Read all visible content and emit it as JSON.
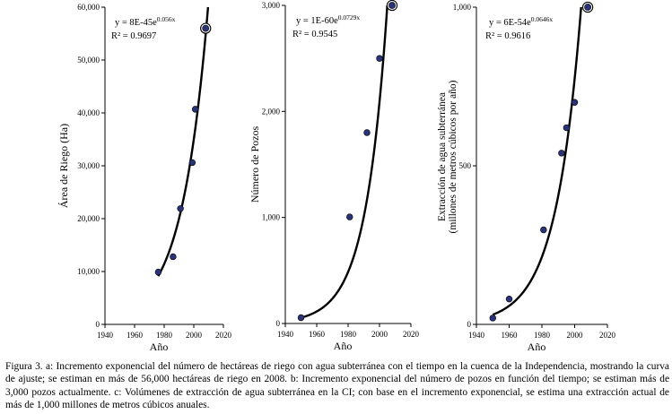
{
  "chart_data": [
    {
      "type": "scatter",
      "panel": "a",
      "xlabel": "Año",
      "ylabel": "Área de Riego (Ha)",
      "xlim": [
        1940,
        2020
      ],
      "ylim": [
        0,
        60000
      ],
      "xticks": [
        1940,
        1960,
        1980,
        2000,
        2020
      ],
      "yticks": [
        0,
        10000,
        20000,
        30000,
        40000,
        50000,
        60000
      ],
      "ytick_labels": [
        "0",
        "10,000",
        "20,000",
        "30,000",
        "40,000",
        "50,000",
        "60,000"
      ],
      "points": [
        {
          "x": 1976,
          "y": 9900
        },
        {
          "x": 1986,
          "y": 12800
        },
        {
          "x": 1991,
          "y": 21900
        },
        {
          "x": 1999,
          "y": 30600
        },
        {
          "x": 2001,
          "y": 40700
        }
      ],
      "projected_point": {
        "x": 2008,
        "y": 56000
      },
      "fit": {
        "a": 8e-45,
        "b": 0.056,
        "x_from": 1976,
        "equation_prefix": "y = 8E-45e",
        "equation_exponent": "0.056x",
        "r2_label": "R² = 0.9697"
      }
    },
    {
      "type": "scatter",
      "panel": "b",
      "xlabel": "Año",
      "ylabel": "Número de Pozos",
      "xlim": [
        1940,
        2020
      ],
      "ylim": [
        0,
        3000
      ],
      "xticks": [
        1940,
        1960,
        1980,
        2000,
        2020
      ],
      "yticks": [
        0,
        1000,
        2000,
        3000
      ],
      "ytick_labels": [
        "0",
        "1,000",
        "2,000",
        "3,000"
      ],
      "points": [
        {
          "x": 1950,
          "y": 55
        },
        {
          "x": 1981,
          "y": 1005
        },
        {
          "x": 1992,
          "y": 1800
        },
        {
          "x": 2000,
          "y": 2500
        }
      ],
      "projected_point": {
        "x": 2008,
        "y": 3000
      },
      "fit": {
        "a": 1e-60,
        "b": 0.0729,
        "x_from": 1950,
        "equation_prefix": "y = 1E-60e",
        "equation_exponent": "0.0729x",
        "r2_label": "R² = 0.9545"
      }
    },
    {
      "type": "scatter",
      "panel": "c",
      "xlabel": "Año",
      "ylabel_lines": [
        "Extracción de agua subterránea",
        "(millones de metros cúbicos por año)"
      ],
      "xlim": [
        1940,
        2020
      ],
      "ylim": [
        0,
        1000
      ],
      "xticks": [
        1940,
        1960,
        1980,
        2000,
        2020
      ],
      "yticks": [
        0,
        500,
        1000
      ],
      "ytick_labels": [
        "0",
        "500",
        "1,000"
      ],
      "points": [
        {
          "x": 1950,
          "y": 20
        },
        {
          "x": 1960,
          "y": 80
        },
        {
          "x": 1981,
          "y": 298
        },
        {
          "x": 1992,
          "y": 540
        },
        {
          "x": 1995,
          "y": 620
        },
        {
          "x": 2000,
          "y": 700
        }
      ],
      "projected_point": {
        "x": 2008,
        "y": 1000
      },
      "fit": {
        "a": 6e-54,
        "b": 0.0646,
        "x_from": 1950,
        "equation_prefix": "y = 6E-54e",
        "equation_exponent": "0.0646x",
        "r2_label": "R² = 0.9616"
      }
    }
  ],
  "caption": "Figura 3. a: Incremento exponencial del número de hectáreas de riego con agua subterránea con el tiempo en la cuenca de la Independencia, mostrando la curva de ajuste; se estiman en más de 56,000 hectáreas de riego en 2008. b: Incremento exponencial del número de pozos en función del tiempo; se estiman más de 3,000 pozos actualmente. c: Volúmenes de extracción de agua subterránea en la CI; con base en el incremento exponencial, se estima una extracción actual de más de 1,000 millones de metros cúbicos anuales.",
  "colors": {
    "marker_fill": "#2a3278",
    "marker_stroke": "#000000",
    "line": "#000000"
  }
}
